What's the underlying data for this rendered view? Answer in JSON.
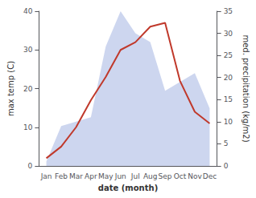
{
  "chart_data": {
    "type": "line",
    "categories": [
      "Jan",
      "Feb",
      "Mar",
      "Apr",
      "May",
      "Jun",
      "Jul",
      "Aug",
      "Sep",
      "Oct",
      "Nov",
      "Dec"
    ],
    "xlabel": "date (month)",
    "ylabel": "max temp (C)",
    "y2label": "med. precipitation (kg/m2)",
    "ylim": [
      0,
      40
    ],
    "yticks": [
      0,
      10,
      20,
      30,
      40
    ],
    "y2lim": [
      0,
      35
    ],
    "y2ticks": [
      0,
      5,
      10,
      15,
      20,
      25,
      30,
      35
    ],
    "grid": false,
    "series": [
      {
        "type": "area",
        "color": "#b8c4e8",
        "axis": "y2",
        "values": [
          1,
          9,
          10,
          11,
          27,
          35,
          30,
          28,
          17,
          19,
          21,
          13
        ]
      },
      {
        "type": "line",
        "color": "#c0392b",
        "values": [
          2,
          5,
          10,
          17,
          23,
          30,
          32,
          36,
          37,
          22,
          14,
          11
        ]
      }
    ]
  }
}
